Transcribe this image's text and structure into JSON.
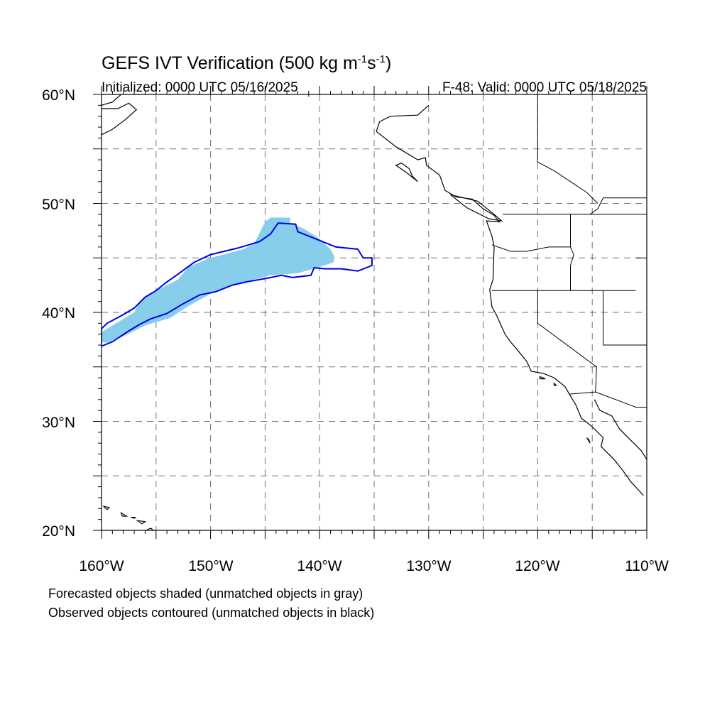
{
  "title": {
    "main": "GEFS IVT Verification (500 kg m",
    "exp1": "-1",
    "mid": "s",
    "exp2": "-1",
    "close": ")",
    "init": "Initialized: 0000 UTC 05/16/2025",
    "valid": "F-48: Valid: 0000 UTC 05/18/2025"
  },
  "axes": {
    "lon_labels": [
      "160°W",
      "150°W",
      "140°W",
      "130°W",
      "120°W",
      "110°W"
    ],
    "lat_labels": [
      "20°N",
      "30°N",
      "40°N",
      "50°N",
      "60°N"
    ],
    "lon_range": [
      -160,
      -110
    ],
    "lat_range": [
      20,
      60
    ],
    "grid_spacing_deg": 5,
    "grid": true
  },
  "notes": [
    "Forecasted objects shaded (unmatched objects in gray)",
    "Observed objects contoured (unmatched objects in black)"
  ],
  "colors": {
    "forecast_fill": "#87ceeb",
    "observed_contour": "#0000e6",
    "coast": "#000000"
  },
  "forecast_object": [
    [
      -160.0,
      38.2
    ],
    [
      -159.0,
      38.8
    ],
    [
      -157.0,
      40.0
    ],
    [
      -156.5,
      41.0
    ],
    [
      -155.0,
      42.0
    ],
    [
      -153.0,
      43.0
    ],
    [
      -152.0,
      44.2
    ],
    [
      -150.0,
      45.0
    ],
    [
      -147.0,
      45.8
    ],
    [
      -146.0,
      46.3
    ],
    [
      -145.5,
      47.3
    ],
    [
      -145.0,
      48.3
    ],
    [
      -144.5,
      48.7
    ],
    [
      -142.7,
      48.7
    ],
    [
      -142.7,
      48.2
    ],
    [
      -141.5,
      47.7
    ],
    [
      -140.2,
      46.9
    ],
    [
      -139.0,
      45.8
    ],
    [
      -138.7,
      45.2
    ],
    [
      -138.7,
      44.6
    ],
    [
      -140.2,
      44.1
    ],
    [
      -142.0,
      43.6
    ],
    [
      -144.5,
      43.4
    ],
    [
      -146.5,
      42.9
    ],
    [
      -148.0,
      42.5
    ],
    [
      -150.0,
      41.7
    ],
    [
      -152.0,
      40.6
    ],
    [
      -153.7,
      39.5
    ],
    [
      -156.0,
      38.8
    ],
    [
      -158.0,
      37.8
    ],
    [
      -159.5,
      37.2
    ],
    [
      -160.0,
      37.3
    ]
  ],
  "observed_object": [
    [
      -160.0,
      38.5
    ],
    [
      -159.5,
      39.0
    ],
    [
      -158.0,
      39.8
    ],
    [
      -157.0,
      40.4
    ],
    [
      -156.0,
      41.4
    ],
    [
      -155.0,
      42.0
    ],
    [
      -154.0,
      42.8
    ],
    [
      -153.0,
      43.5
    ],
    [
      -151.5,
      44.6
    ],
    [
      -150.0,
      45.3
    ],
    [
      -147.5,
      45.9
    ],
    [
      -145.5,
      46.5
    ],
    [
      -144.5,
      47.2
    ],
    [
      -143.8,
      48.2
    ],
    [
      -142.2,
      48.1
    ],
    [
      -142.0,
      47.4
    ],
    [
      -140.5,
      46.8
    ],
    [
      -139.5,
      46.4
    ],
    [
      -138.5,
      46.0
    ],
    [
      -136.5,
      45.8
    ],
    [
      -136.0,
      45.0
    ],
    [
      -135.2,
      45.0
    ],
    [
      -135.2,
      44.3
    ],
    [
      -136.5,
      43.8
    ],
    [
      -138.0,
      44.0
    ],
    [
      -139.5,
      44.0
    ],
    [
      -140.5,
      44.1
    ],
    [
      -140.8,
      43.4
    ],
    [
      -142.5,
      43.2
    ],
    [
      -143.5,
      43.4
    ],
    [
      -145.0,
      43.1
    ],
    [
      -146.7,
      42.8
    ],
    [
      -148.0,
      42.5
    ],
    [
      -149.5,
      41.9
    ],
    [
      -151.0,
      41.6
    ],
    [
      -152.5,
      40.8
    ],
    [
      -154.0,
      39.9
    ],
    [
      -155.5,
      39.4
    ],
    [
      -156.5,
      38.9
    ],
    [
      -157.5,
      38.3
    ],
    [
      -159.0,
      37.3
    ],
    [
      -160.0,
      36.9
    ]
  ],
  "coastline": [
    [
      -130.0,
      59.0
    ],
    [
      -131.0,
      58.1
    ],
    [
      -133.5,
      58.0
    ],
    [
      -134.5,
      57.5
    ],
    [
      -134.8,
      56.6
    ],
    [
      -133.0,
      55.2
    ],
    [
      -131.0,
      54.0
    ],
    [
      -130.3,
      54.2
    ],
    [
      -130.2,
      53.5
    ],
    [
      -129.0,
      52.6
    ],
    [
      -128.5,
      51.2
    ],
    [
      -127.5,
      50.6
    ],
    [
      -126.0,
      50.4
    ],
    [
      -125.0,
      49.5
    ],
    [
      -124.0,
      48.9
    ],
    [
      -123.5,
      48.3
    ],
    [
      -124.7,
      48.4
    ],
    [
      -124.2,
      47.0
    ],
    [
      -124.0,
      46.0
    ],
    [
      -124.1,
      43.0
    ],
    [
      -124.4,
      42.1
    ],
    [
      -124.2,
      40.5
    ],
    [
      -123.8,
      39.8
    ],
    [
      -123.0,
      38.0
    ],
    [
      -122.5,
      37.3
    ],
    [
      -121.9,
      36.6
    ],
    [
      -121.0,
      35.5
    ],
    [
      -120.6,
      34.6
    ],
    [
      -119.5,
      34.4
    ],
    [
      -118.5,
      34.0
    ],
    [
      -117.5,
      33.2
    ],
    [
      -117.1,
      32.5
    ],
    [
      -116.5,
      31.5
    ],
    [
      -116.0,
      30.3
    ],
    [
      -115.0,
      29.5
    ],
    [
      -114.0,
      28.5
    ],
    [
      -114.2,
      27.7
    ],
    [
      -113.0,
      26.5
    ],
    [
      -112.2,
      25.5
    ],
    [
      -111.5,
      24.5
    ],
    [
      -110.3,
      23.2
    ]
  ],
  "gulf_coast": [
    [
      -114.8,
      32.0
    ],
    [
      -114.3,
      31.0
    ],
    [
      -113.2,
      30.5
    ],
    [
      -112.5,
      29.3
    ],
    [
      -111.2,
      28.0
    ],
    [
      -110.5,
      27.3
    ],
    [
      -110.0,
      26.5
    ]
  ],
  "alaska_coast": [
    [
      -160.0,
      58.7
    ],
    [
      -158.5,
      58.7
    ],
    [
      -157.5,
      59.2
    ],
    [
      -156.8,
      58.6
    ],
    [
      -157.8,
      57.7
    ],
    [
      -159.0,
      56.8
    ],
    [
      -160.0,
      56.3
    ]
  ],
  "alaska_coast_top": [
    [
      -158.2,
      60.0
    ],
    [
      -159.0,
      59.3
    ],
    [
      -160.0,
      59.0
    ]
  ],
  "borders": [
    [
      [
        -123.2,
        49.0
      ],
      [
        -110.0,
        49.0
      ]
    ],
    [
      [
        -141.0,
        60.0
      ],
      [
        -141.0,
        59.8
      ]
    ],
    [
      [
        -124.2,
        46.2
      ],
      [
        -122.5,
        45.6
      ],
      [
        -121.0,
        45.6
      ],
      [
        -119.0,
        46.0
      ],
      [
        -117.0,
        46.0
      ]
    ],
    [
      [
        -117.0,
        49.0
      ],
      [
        -117.0,
        46.0
      ],
      [
        -116.7,
        45.3
      ],
      [
        -117.0,
        44.3
      ],
      [
        -117.0,
        42.0
      ]
    ],
    [
      [
        -124.2,
        42.0
      ],
      [
        -111.0,
        42.0
      ]
    ],
    [
      [
        -120.0,
        42.0
      ],
      [
        -120.0,
        39.0
      ],
      [
        -114.6,
        35.0
      ],
      [
        -114.7,
        32.7
      ]
    ],
    [
      [
        -114.0,
        42.0
      ],
      [
        -114.0,
        37.0
      ],
      [
        -110.0,
        37.0
      ]
    ],
    [
      [
        -111.0,
        45.0
      ],
      [
        -110.0,
        45.0
      ]
    ],
    [
      [
        -117.1,
        32.5
      ],
      [
        -114.7,
        32.7
      ],
      [
        -111.0,
        31.3
      ],
      [
        -110.0,
        31.3
      ]
    ],
    [
      [
        -115.2,
        49.0
      ],
      [
        -115.2,
        49.0
      ],
      [
        -114.5,
        49.5
      ],
      [
        -114.0,
        50.5
      ],
      [
        -110.0,
        50.5
      ]
    ],
    [
      [
        -120.0,
        60.0
      ],
      [
        -120.0,
        53.8
      ],
      [
        -118.5,
        53.0
      ],
      [
        -117.0,
        52.0
      ],
      [
        -115.5,
        51.0
      ],
      [
        -114.5,
        50.0
      ]
    ]
  ],
  "islands": [
    [
      [
        -155.5,
        20.2
      ],
      [
        -155.0,
        19.8
      ],
      [
        -154.8,
        19.5
      ],
      [
        -155.3,
        19.0
      ],
      [
        -155.9,
        19.3
      ],
      [
        -155.9,
        20.0
      ]
    ],
    [
      [
        -156.7,
        20.9
      ],
      [
        -156.0,
        20.8
      ],
      [
        -156.3,
        20.6
      ]
    ],
    [
      [
        -157.3,
        21.2
      ],
      [
        -156.9,
        21.2
      ],
      [
        -157.0,
        21.1
      ]
    ],
    [
      [
        -158.2,
        21.6
      ],
      [
        -157.7,
        21.3
      ],
      [
        -158.1,
        21.3
      ]
    ],
    [
      [
        -159.8,
        22.2
      ],
      [
        -159.3,
        22.1
      ],
      [
        -159.5,
        21.9
      ]
    ],
    [
      [
        -132.5,
        53.7
      ],
      [
        -131.8,
        53.2
      ],
      [
        -131.5,
        52.5
      ],
      [
        -131.0,
        52.0
      ],
      [
        -132.0,
        52.8
      ],
      [
        -133.0,
        53.5
      ]
    ],
    [
      [
        -128.0,
        50.8
      ],
      [
        -125.5,
        50.2
      ],
      [
        -124.0,
        49.0
      ],
      [
        -123.3,
        48.4
      ],
      [
        -124.5,
        48.6
      ],
      [
        -126.5,
        49.6
      ]
    ],
    [
      [
        -119.8,
        34.1
      ],
      [
        -119.3,
        33.9
      ],
      [
        -119.8,
        33.9
      ]
    ],
    [
      [
        -118.5,
        33.5
      ],
      [
        -118.3,
        33.3
      ],
      [
        -118.5,
        33.3
      ]
    ],
    [
      [
        -115.5,
        28.5
      ],
      [
        -115.2,
        28.0
      ],
      [
        -115.3,
        28.3
      ]
    ]
  ]
}
